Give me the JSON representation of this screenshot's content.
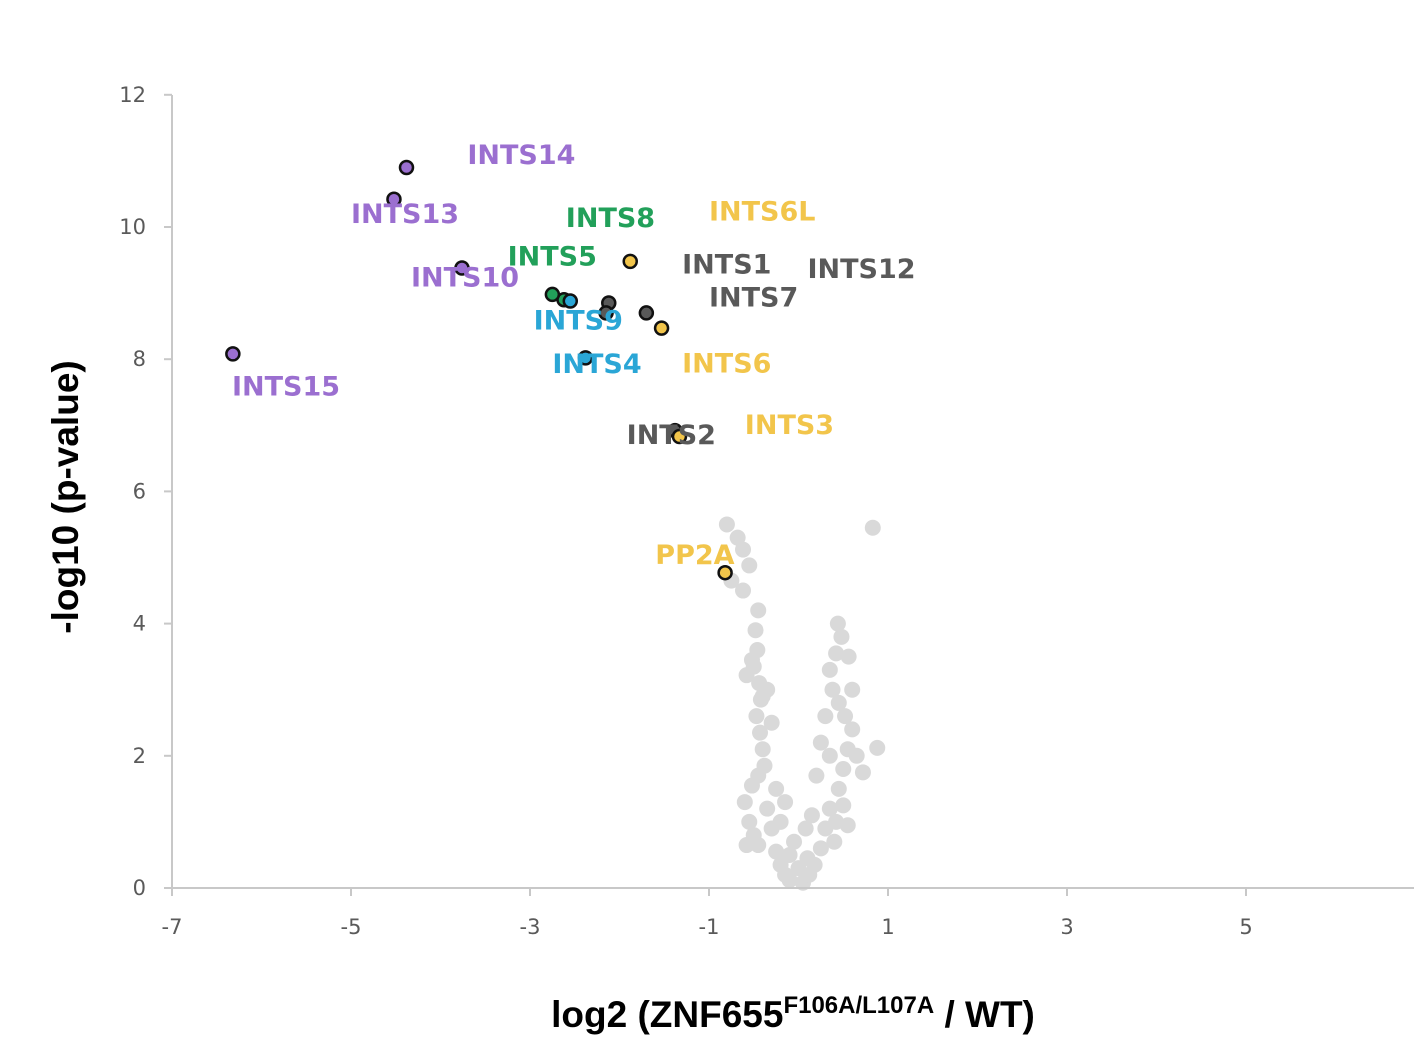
{
  "chart_data": {
    "type": "scatter",
    "title": "",
    "xlabel": {
      "main": "log2 (ZNF655",
      "superscript": "F106A/L107A",
      "tail": " / WT)"
    },
    "ylabel": "-log10 (p-value)",
    "xlim": [
      -7,
      7
    ],
    "ylim": [
      0,
      12
    ],
    "x_ticks": [
      -7,
      -5,
      -3,
      -1,
      1,
      3,
      5
    ],
    "y_ticks": [
      0,
      2,
      4,
      6,
      8,
      10,
      12
    ],
    "grid": false,
    "legend": "none",
    "colors": {
      "purple": "#9b6fd0",
      "green": "#22a05a",
      "cyan": "#2aa6d6",
      "gray": "#595959",
      "yellow": "#f2c54b",
      "background_points": "#d9d9d9",
      "axis": "#c8c8c8"
    },
    "highlighted_points": [
      {
        "label": "INTS14",
        "x": -4.38,
        "y": 10.9,
        "color": "purple"
      },
      {
        "label": "INTS13",
        "x": -4.52,
        "y": 10.42,
        "color": "purple"
      },
      {
        "label": "INTS10",
        "x": -3.76,
        "y": 9.38,
        "color": "purple"
      },
      {
        "label": "INTS15",
        "x": -6.32,
        "y": 8.08,
        "color": "purple"
      },
      {
        "label": "INTS8",
        "x": -2.62,
        "y": 8.9,
        "color": "green"
      },
      {
        "label": "INTS5",
        "x": -2.75,
        "y": 8.98,
        "color": "green"
      },
      {
        "label": "INTS9",
        "x": -2.55,
        "y": 8.88,
        "color": "cyan"
      },
      {
        "label": "INTS4",
        "x": -2.38,
        "y": 8.02,
        "color": "cyan"
      },
      {
        "label": "INTS1",
        "x": -2.12,
        "y": 8.85,
        "color": "gray"
      },
      {
        "label": "INTS12",
        "x": -2.15,
        "y": 8.7,
        "color": "gray"
      },
      {
        "label": "INTS7",
        "x": -1.7,
        "y": 8.7,
        "color": "gray"
      },
      {
        "label": "INTS2",
        "x": -1.38,
        "y": 6.92,
        "color": "gray"
      },
      {
        "label": "INTS6L",
        "x": -1.88,
        "y": 9.48,
        "color": "yellow"
      },
      {
        "label": "INTS6",
        "x": -1.53,
        "y": 8.47,
        "color": "yellow"
      },
      {
        "label": "INTS3",
        "x": -1.33,
        "y": 6.83,
        "color": "yellow"
      },
      {
        "label": "PP2A",
        "x": -0.82,
        "y": 4.77,
        "color": "yellow"
      }
    ],
    "annotations": [
      {
        "text": "INTS14",
        "x": -3.7,
        "y": 10.95,
        "color": "purple"
      },
      {
        "text": "INTS13",
        "x": -5.0,
        "y": 10.06,
        "color": "purple"
      },
      {
        "text": "INTS10",
        "x": -4.33,
        "y": 9.1,
        "color": "purple"
      },
      {
        "text": "INTS15",
        "x": -6.33,
        "y": 7.45,
        "color": "purple"
      },
      {
        "text": "INTS8",
        "x": -2.6,
        "y": 10.0,
        "color": "green"
      },
      {
        "text": "INTS5",
        "x": -3.25,
        "y": 9.42,
        "color": "green"
      },
      {
        "text": "INTS9",
        "x": -2.96,
        "y": 8.45,
        "color": "cyan"
      },
      {
        "text": "INTS4",
        "x": -2.75,
        "y": 7.79,
        "color": "cyan"
      },
      {
        "text": "INTS6L",
        "x": -1.0,
        "y": 10.1,
        "color": "yellow"
      },
      {
        "text": "INTS1",
        "x": -1.3,
        "y": 9.3,
        "color": "gray"
      },
      {
        "text": "INTS12",
        "x": 0.1,
        "y": 9.23,
        "color": "gray"
      },
      {
        "text": "INTS7",
        "x": -1.0,
        "y": 8.8,
        "color": "gray"
      },
      {
        "text": "INTS6",
        "x": -1.3,
        "y": 7.8,
        "color": "yellow"
      },
      {
        "text": "INTS2",
        "x": -1.92,
        "y": 6.72,
        "color": "gray"
      },
      {
        "text": "INTS3",
        "x": -0.6,
        "y": 6.87,
        "color": "yellow"
      },
      {
        "text": "PP2A",
        "x": -1.6,
        "y": 4.9,
        "color": "yellow"
      }
    ],
    "background_points": [
      [
        -0.8,
        5.5
      ],
      [
        -0.68,
        5.3
      ],
      [
        -0.62,
        5.12
      ],
      [
        -0.55,
        4.88
      ],
      [
        -0.75,
        4.65
      ],
      [
        -0.62,
        4.5
      ],
      [
        0.83,
        5.45
      ],
      [
        -0.45,
        4.2
      ],
      [
        -0.48,
        3.9
      ],
      [
        -0.46,
        3.6
      ],
      [
        -0.5,
        3.35
      ],
      [
        -0.58,
        3.22
      ],
      [
        -0.44,
        3.1
      ],
      [
        -0.42,
        2.85
      ],
      [
        -0.47,
        2.6
      ],
      [
        -0.43,
        2.35
      ],
      [
        -0.4,
        2.1
      ],
      [
        -0.38,
        1.85
      ],
      [
        -0.45,
        1.7
      ],
      [
        -0.52,
        1.55
      ],
      [
        -0.6,
        1.3
      ],
      [
        -0.55,
        1.0
      ],
      [
        -0.5,
        0.8
      ],
      [
        -0.35,
        1.2
      ],
      [
        -0.3,
        0.9
      ],
      [
        -0.45,
        0.65
      ],
      [
        -0.25,
        0.55
      ],
      [
        -0.2,
        0.35
      ],
      [
        -0.15,
        0.2
      ],
      [
        -0.1,
        0.12
      ],
      [
        0.05,
        0.08
      ],
      [
        0.12,
        0.2
      ],
      [
        0.18,
        0.35
      ],
      [
        0.25,
        0.6
      ],
      [
        0.3,
        0.9
      ],
      [
        0.35,
        1.2
      ],
      [
        0.42,
        1.0
      ],
      [
        0.4,
        0.7
      ],
      [
        0.45,
        1.5
      ],
      [
        0.5,
        1.8
      ],
      [
        0.55,
        2.1
      ],
      [
        0.6,
        2.4
      ],
      [
        0.65,
        2.0
      ],
      [
        0.72,
        1.75
      ],
      [
        0.88,
        2.12
      ],
      [
        0.45,
        2.8
      ],
      [
        0.38,
        3.0
      ],
      [
        0.35,
        3.3
      ],
      [
        0.42,
        3.55
      ],
      [
        0.48,
        3.8
      ],
      [
        0.44,
        4.0
      ],
      [
        0.56,
        3.5
      ],
      [
        0.3,
        2.6
      ],
      [
        0.25,
        2.2
      ],
      [
        0.2,
        1.7
      ],
      [
        -0.3,
        2.5
      ],
      [
        -0.35,
        3.0
      ],
      [
        -0.25,
        1.5
      ],
      [
        -0.2,
        1.0
      ],
      [
        -0.1,
        0.5
      ],
      [
        0.0,
        0.3
      ],
      [
        0.1,
        0.45
      ],
      [
        -0.05,
        0.7
      ],
      [
        0.08,
        0.9
      ],
      [
        0.15,
        1.1
      ],
      [
        -0.15,
        1.3
      ],
      [
        0.52,
        2.6
      ],
      [
        0.6,
        3.0
      ],
      [
        0.35,
        2.0
      ],
      [
        -0.4,
        2.9
      ],
      [
        -0.52,
        3.45
      ],
      [
        0.5,
        1.25
      ],
      [
        0.55,
        0.95
      ],
      [
        -0.58,
        0.65
      ]
    ]
  }
}
